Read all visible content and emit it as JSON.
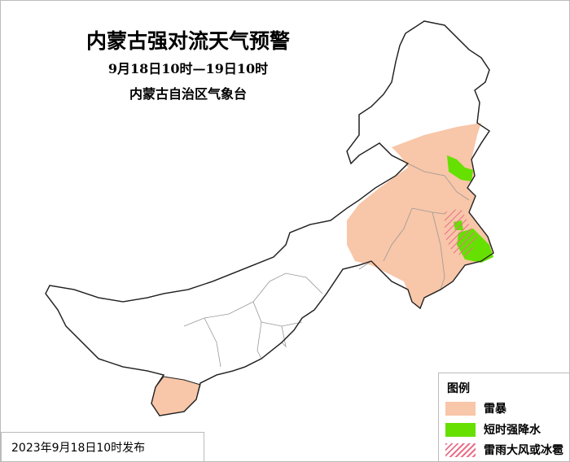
{
  "title": "内蒙古强对流天气预警",
  "period": "9月18日10时—19日10时",
  "issuer": "内蒙古自治区气象台",
  "publish_time": "2023年9月18日10时发布",
  "legend": {
    "heading": "图例",
    "items": [
      {
        "label": "雷暴",
        "color": "#f8c6a8",
        "pattern": "solid"
      },
      {
        "label": "短时强降水",
        "color": "#66e000",
        "pattern": "solid"
      },
      {
        "label": "雷雨大风或冰雹",
        "color": "#e8708a",
        "pattern": "hatched"
      }
    ]
  }
}
